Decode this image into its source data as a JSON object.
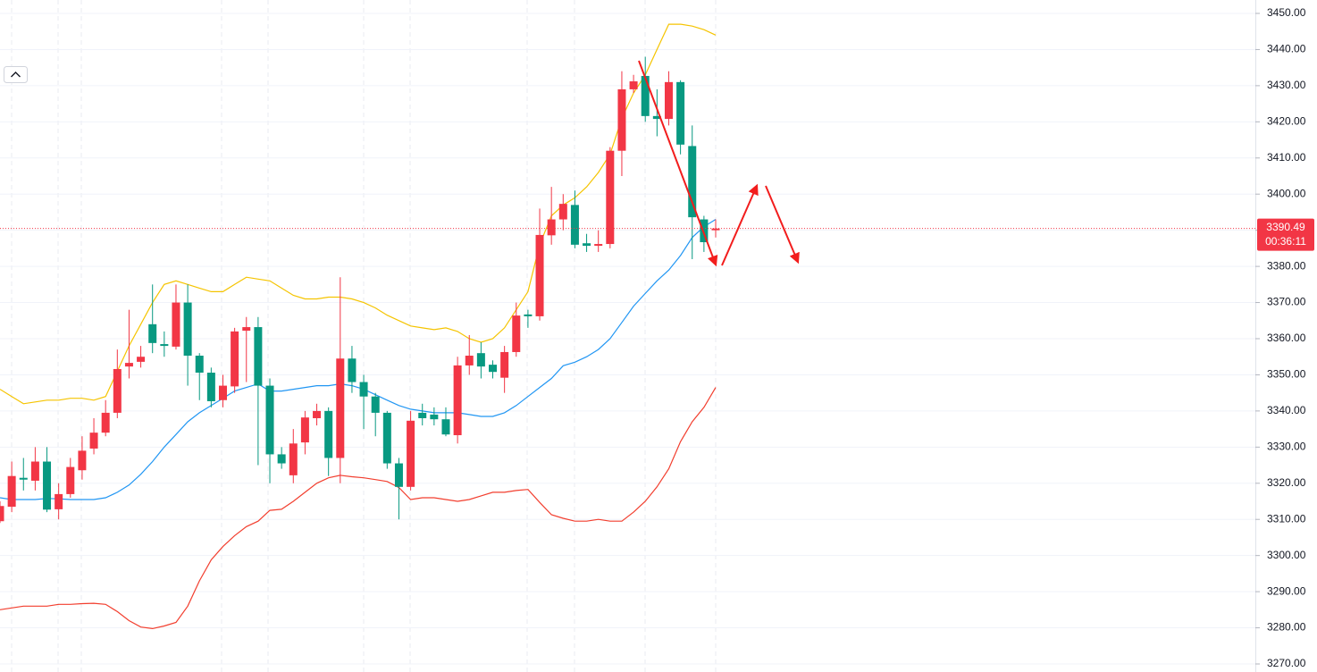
{
  "chart_data": {
    "type": "candlestick",
    "up_color": "#f23645",
    "down_color": "#089981",
    "ylim": [
      3270,
      3450
    ],
    "yticks": [
      {
        "value": 3270,
        "label": "3270.00"
      },
      {
        "value": 3280,
        "label": "3280.00"
      },
      {
        "value": 3290,
        "label": "3290.00"
      },
      {
        "value": 3300,
        "label": "3300.00"
      },
      {
        "value": 3310,
        "label": "3310.00"
      },
      {
        "value": 3320,
        "label": "3320.00"
      },
      {
        "value": 3330,
        "label": "3330.00"
      },
      {
        "value": 3340,
        "label": "3340.00"
      },
      {
        "value": 3350,
        "label": "3350.00"
      },
      {
        "value": 3360,
        "label": "3360.00"
      },
      {
        "value": 3370,
        "label": "3370.00"
      },
      {
        "value": 3380,
        "label": "3380.00"
      },
      {
        "value": 3390,
        "label": "3390.00"
      },
      {
        "value": 3400,
        "label": "3400.00"
      },
      {
        "value": 3410,
        "label": "3410.00"
      },
      {
        "value": 3420,
        "label": "3420.00"
      },
      {
        "value": 3430,
        "label": "3430.00"
      },
      {
        "value": 3440,
        "label": "3440.00"
      },
      {
        "value": 3450,
        "label": "3450.00"
      }
    ],
    "grid": true,
    "open": [
      3309.5,
      3313.5,
      3321.5,
      3320.7,
      3326,
      3312.8,
      3317,
      3323.6,
      3329.6,
      3334,
      3339.5,
      3352.3,
      3353.6,
      3364,
      3358.5,
      3357.8,
      3370,
      3355.3,
      3350.6,
      3343,
      3346.8,
      3362.2,
      3363.2,
      3347,
      3328,
      3322.2,
      3331.3,
      3338,
      3340,
      3327,
      3354.5,
      3348,
      3344,
      3339.5,
      3325.5,
      3319,
      3339.5,
      3339,
      3337.7,
      3333.3,
      3352.6,
      3356,
      3352.8,
      3349.2,
      3356.3,
      3366.7,
      3366.2,
      3388.6,
      3393,
      3397,
      3386.4,
      3385.7,
      3386.2,
      3412,
      3429,
      3432.7,
      3421.6,
      3420.8,
      3431,
      3413.3,
      3393,
      3390
    ],
    "high": [
      3315,
      3326,
      3327,
      3330,
      3330,
      3320,
      3327,
      3333,
      3338,
      3343,
      3357,
      3368,
      3358,
      3375,
      3362,
      3375,
      3375,
      3356,
      3352,
      3350,
      3363,
      3366,
      3366,
      3349,
      3330,
      3335,
      3340,
      3342,
      3341,
      3377,
      3358,
      3350,
      3345,
      3340,
      3327,
      3340,
      3342,
      3341,
      3341,
      3355,
      3361,
      3359,
      3354,
      3358,
      3370,
      3368,
      3396,
      3402,
      3400,
      3401,
      3389,
      3390,
      3413,
      3434,
      3433,
      3438,
      3429,
      3434,
      3431.5,
      3419,
      3394,
      3393
    ],
    "low": [
      3309,
      3312,
      3318,
      3318,
      3312,
      3310,
      3316,
      3321,
      3328,
      3333,
      3338,
      3349,
      3352,
      3356,
      3355,
      3357,
      3347,
      3343,
      3341,
      3341,
      3345,
      3348,
      3325,
      3320,
      3324,
      3320,
      3328,
      3336,
      3322,
      3320,
      3345,
      3335,
      3333,
      3324,
      3310,
      3318,
      3336,
      3336,
      3333,
      3331,
      3350,
      3349,
      3349,
      3345,
      3355,
      3363,
      3365,
      3386,
      3390,
      3385,
      3384,
      3384,
      3385,
      3405,
      3428,
      3420,
      3416,
      3419,
      3411,
      3382,
      3384,
      3388
    ],
    "close": [
      3313.7,
      3322,
      3321,
      3326,
      3312.7,
      3317,
      3324.5,
      3329,
      3334,
      3339.5,
      3351.6,
      3353.3,
      3355,
      3358.8,
      3358,
      3370,
      3355.3,
      3350.6,
      3342.7,
      3347,
      3362,
      3363.2,
      3347,
      3328,
      3325.5,
      3331,
      3338.2,
      3340,
      3327,
      3354.5,
      3348,
      3344,
      3339.5,
      3325.5,
      3319,
      3337.3,
      3338,
      3337.7,
      3333.5,
      3352.6,
      3355.3,
      3352.3,
      3350.8,
      3356.3,
      3366.4,
      3366.2,
      3388.7,
      3393,
      3397.3,
      3386,
      3385.7,
      3386.2,
      3412,
      3429,
      3431.2,
      3421.6,
      3420.8,
      3431,
      3413.7,
      3393.6,
      3386.7,
      3390.49
    ],
    "series": [
      {
        "color": "#f5c400",
        "values": [
          3346,
          3344,
          3342,
          3342.5,
          3343,
          3343,
          3343.5,
          3343.5,
          3343,
          3344,
          3351,
          3358,
          3364,
          3370,
          3375,
          3376,
          3375,
          3374,
          3373,
          3373,
          3375,
          3377,
          3376.5,
          3376,
          3374,
          3372,
          3371,
          3371,
          3371.5,
          3371.5,
          3371,
          3370,
          3368.5,
          3366.5,
          3365,
          3363.5,
          3363,
          3362.5,
          3363,
          3362,
          3360,
          3359,
          3360,
          3363,
          3368,
          3373,
          3386,
          3394,
          3397,
          3399,
          3402,
          3406,
          3411,
          3421,
          3428,
          3433,
          3440,
          3447,
          3447,
          3446.5,
          3445.5,
          3444
        ]
      },
      {
        "color": "#2196f3",
        "values": [
          3316,
          3315.5,
          3315.5,
          3315.5,
          3315.8,
          3315.7,
          3315.5,
          3315.5,
          3315.5,
          3316,
          3317.5,
          3319.5,
          3322.5,
          3326,
          3330,
          3333.5,
          3337,
          3339.5,
          3341.5,
          3343.5,
          3345.5,
          3346.5,
          3347.5,
          3345.5,
          3345.5,
          3346,
          3346.5,
          3347,
          3347,
          3347.5,
          3347,
          3346,
          3344.5,
          3343,
          3341.5,
          3340.5,
          3340,
          3339.5,
          3339.5,
          3339.5,
          3339,
          3338.5,
          3338.5,
          3339.5,
          3341.5,
          3344,
          3346.5,
          3349,
          3352.5,
          3353.5,
          3355,
          3357,
          3360,
          3364.5,
          3369,
          3372.5,
          3376,
          3379,
          3383,
          3388,
          3391,
          3393
        ]
      },
      {
        "color": "#f23e2e",
        "values": [
          3285,
          3285.5,
          3286,
          3286,
          3286,
          3286.5,
          3286.5,
          3286.7,
          3286.8,
          3286.5,
          3284.5,
          3282,
          3280.2,
          3279.8,
          3280.5,
          3281.5,
          3286,
          3293,
          3298.8,
          3302.5,
          3305.5,
          3308,
          3309.5,
          3312.5,
          3312.8,
          3315,
          3317.5,
          3320,
          3321.5,
          3322.2,
          3321.8,
          3321.5,
          3321,
          3320.5,
          3318.8,
          3315.5,
          3316,
          3316,
          3315.5,
          3315,
          3315.5,
          3316.5,
          3317.5,
          3317.5,
          3318,
          3318.3,
          3314.7,
          3311.3,
          3310.3,
          3309.5,
          3309.5,
          3310,
          3309.5,
          3309.5,
          3312,
          3315,
          3319,
          3324,
          3331.5,
          3337,
          3341,
          3346.5
        ]
      }
    ],
    "last_price": 3390.49,
    "countdown": "00:36:11"
  }
}
